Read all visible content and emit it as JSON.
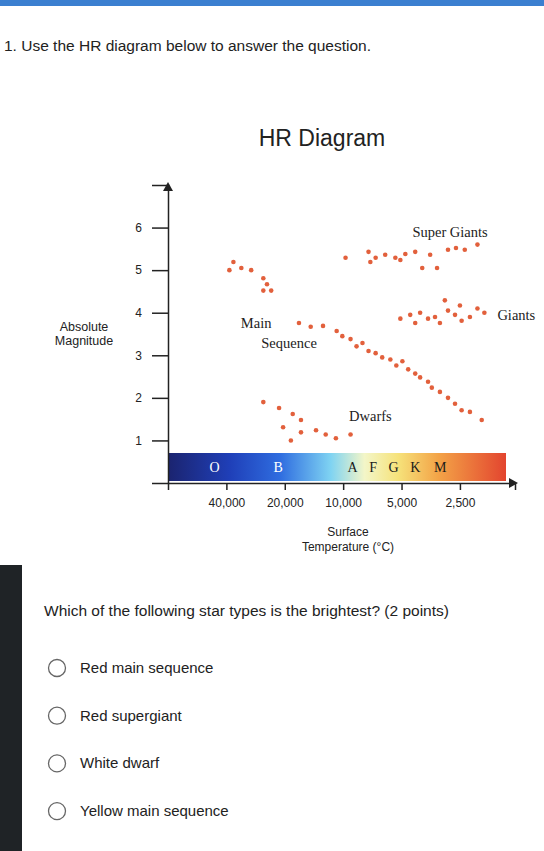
{
  "header": "1. Use the HR diagram below to answer the question.",
  "chart_data": {
    "type": "scatter",
    "title": "HR Diagram",
    "xlabel": "Surface Temperature (°C)",
    "ylabel": "Absolute Magnitude",
    "log": "x",
    "grid": false,
    "marker": "circle",
    "color": "#e2603c",
    "xlim": [
      80000,
      1300
    ],
    "xticks": [
      {
        "value": 40000,
        "label": "40,000"
      },
      {
        "value": 20000,
        "label": "20,000"
      },
      {
        "value": 10000,
        "label": "10,000"
      },
      {
        "value": 5000,
        "label": "5,000"
      },
      {
        "value": 2500,
        "label": "2,500"
      }
    ],
    "ylim": [
      0,
      7
    ],
    "yticks": [
      1,
      2,
      3,
      4,
      5,
      6
    ],
    "x": [
      38600,
      36800,
      33500,
      29800,
      25800,
      25800,
      24700,
      23500,
      9720,
      7400,
      6800,
      6070,
      5380,
      4780,
      4250,
      3910,
      3560,
      3280,
      2880,
      2620,
      2360,
      2030,
      7240,
      5070,
      5070,
      4510,
      4010,
      3650,
      3360,
      3170,
      2880,
      2650,
      2500,
      2450,
      2220,
      2030,
      1870,
      4250,
      2990,
      16900,
      14700,
      12700,
      10800,
      10100,
      9160,
      8530,
      7950,
      7400,
      6800,
      6290,
      5710,
      5320,
      4950,
      4620,
      4250,
      4010,
      3650,
      3490,
      3170,
      2880,
      2650,
      2450,
      2220,
      1930,
      25800,
      21400,
      18200,
      16500,
      20400,
      16500,
      13800,
      12300,
      10900,
      9160,
      18600
    ],
    "values": [
      5.0,
      5.19,
      5.05,
      5.0,
      4.81,
      4.52,
      4.67,
      4.52,
      5.29,
      5.43,
      5.29,
      5.36,
      5.29,
      5.38,
      5.43,
      5.05,
      5.36,
      5.05,
      5.48,
      5.52,
      5.48,
      5.6,
      5.19,
      5.24,
      3.86,
      3.95,
      4.0,
      3.86,
      3.9,
      3.76,
      4.05,
      3.95,
      4.17,
      3.81,
      3.9,
      4.1,
      4.0,
      3.76,
      4.29,
      3.76,
      3.67,
      3.69,
      3.57,
      3.45,
      3.38,
      3.21,
      3.29,
      3.1,
      3.05,
      2.95,
      2.9,
      2.76,
      2.86,
      2.67,
      2.57,
      2.48,
      2.38,
      2.24,
      2.14,
      2.0,
      1.86,
      1.71,
      1.67,
      1.48,
      1.9,
      1.76,
      1.62,
      1.48,
      1.31,
      1.19,
      1.24,
      1.14,
      1.05,
      1.14,
      1.0
    ],
    "annotations": [
      {
        "text": "Super Giants",
        "x": 2810,
        "y": 5.9
      },
      {
        "text": "Giants",
        "x": 1280,
        "y": 3.95
      },
      {
        "text": "Main",
        "x": 28100,
        "y": 3.76
      },
      {
        "text": "Sequence",
        "x": 19000,
        "y": 3.29
      },
      {
        "text": "Dwarfs",
        "x": 7240,
        "y": 1.57
      }
    ],
    "spectral_classes": [
      {
        "label": "O",
        "value": 46000
      },
      {
        "label": "B",
        "value": 21600
      },
      {
        "label": "A",
        "value": 8950
      },
      {
        "label": "F",
        "value": 7000
      },
      {
        "label": "G",
        "value": 5500
      },
      {
        "label": "K",
        "value": 4250
      },
      {
        "label": "M",
        "value": 3160
      }
    ]
  },
  "question": "Which of the following star types is the brightest? (2 points)",
  "options": [
    "Red main sequence",
    "Red supergiant",
    "White dwarf",
    "Yellow main sequence"
  ]
}
